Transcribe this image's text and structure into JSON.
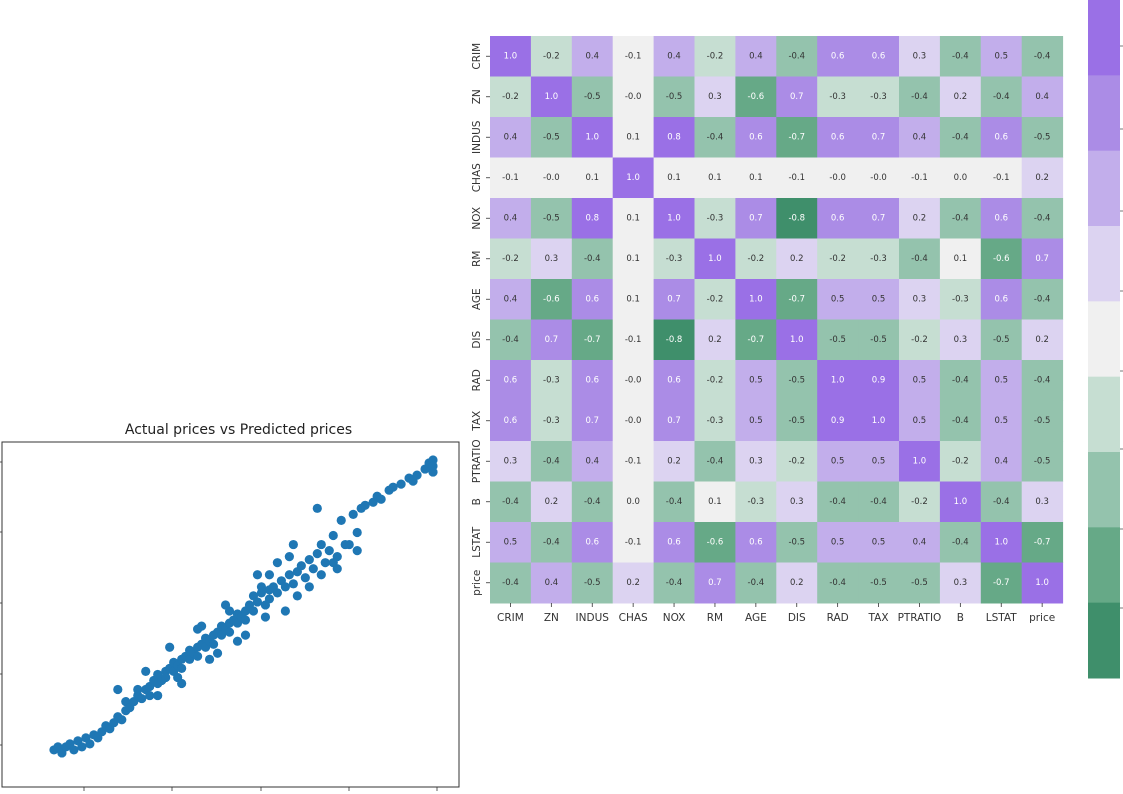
{
  "chart_data": [
    {
      "type": "heatmap",
      "title": "",
      "labels": [
        "CRIM",
        "ZN",
        "INDUS",
        "CHAS",
        "NOX",
        "RM",
        "AGE",
        "DIS",
        "RAD",
        "TAX",
        "PTRATIO",
        "B",
        "LSTAT",
        "price"
      ],
      "matrix": [
        [
          1.0,
          -0.2,
          0.4,
          -0.1,
          0.4,
          -0.2,
          0.4,
          -0.4,
          0.6,
          0.6,
          0.3,
          -0.4,
          0.5,
          -0.4
        ],
        [
          -0.2,
          1.0,
          -0.5,
          -0.0,
          -0.5,
          0.3,
          -0.6,
          0.7,
          -0.3,
          -0.3,
          -0.4,
          0.2,
          -0.4,
          0.4
        ],
        [
          0.4,
          -0.5,
          1.0,
          0.1,
          0.8,
          -0.4,
          0.6,
          -0.7,
          0.6,
          0.7,
          0.4,
          -0.4,
          0.6,
          -0.5
        ],
        [
          -0.1,
          -0.0,
          0.1,
          1.0,
          0.1,
          0.1,
          0.1,
          -0.1,
          -0.0,
          -0.0,
          -0.1,
          0.0,
          -0.1,
          0.2
        ],
        [
          0.4,
          -0.5,
          0.8,
          0.1,
          1.0,
          -0.3,
          0.7,
          -0.8,
          0.6,
          0.7,
          0.2,
          -0.4,
          0.6,
          -0.4
        ],
        [
          -0.2,
          0.3,
          -0.4,
          0.1,
          -0.3,
          1.0,
          -0.2,
          0.2,
          -0.2,
          -0.3,
          -0.4,
          0.1,
          -0.6,
          0.7
        ],
        [
          0.4,
          -0.6,
          0.6,
          0.1,
          0.7,
          -0.2,
          1.0,
          -0.7,
          0.5,
          0.5,
          0.3,
          -0.3,
          0.6,
          -0.4
        ],
        [
          -0.4,
          0.7,
          -0.7,
          -0.1,
          -0.8,
          0.2,
          -0.7,
          1.0,
          -0.5,
          -0.5,
          -0.2,
          0.3,
          -0.5,
          0.2
        ],
        [
          0.6,
          -0.3,
          0.6,
          -0.0,
          0.6,
          -0.2,
          0.5,
          -0.5,
          1.0,
          0.9,
          0.5,
          -0.4,
          0.5,
          -0.4
        ],
        [
          0.6,
          -0.3,
          0.7,
          -0.0,
          0.7,
          -0.3,
          0.5,
          -0.5,
          0.9,
          1.0,
          0.5,
          -0.4,
          0.5,
          -0.5
        ],
        [
          0.3,
          -0.4,
          0.4,
          -0.1,
          0.2,
          -0.4,
          0.3,
          -0.2,
          0.5,
          0.5,
          1.0,
          -0.2,
          0.4,
          -0.5
        ],
        [
          -0.4,
          0.2,
          -0.4,
          0.0,
          -0.4,
          0.1,
          -0.3,
          0.3,
          -0.4,
          -0.4,
          -0.2,
          1.0,
          -0.4,
          0.3
        ],
        [
          0.5,
          -0.4,
          0.6,
          -0.1,
          0.6,
          -0.6,
          0.6,
          -0.5,
          0.5,
          0.5,
          0.4,
          -0.4,
          1.0,
          -0.7
        ],
        [
          -0.4,
          0.4,
          -0.5,
          0.2,
          -0.4,
          0.7,
          -0.4,
          0.2,
          -0.4,
          -0.5,
          -0.5,
          0.3,
          -0.7,
          1.0
        ]
      ],
      "value_range": [
        -1.0,
        1.0
      ],
      "colorbar_colors_top_to_bottom": [
        "#9a70e6",
        "#ab8ce6",
        "#c2aeeb",
        "#dcd3f1",
        "#f0f0f0",
        "#c6ded2",
        "#94c3ad",
        "#66a987",
        "#3f8f6b"
      ]
    },
    {
      "type": "scatter",
      "title": "Actual prices vs Predicted prices",
      "color": "#1f77b4",
      "x_range": [
        0,
        1
      ],
      "y_range": [
        0,
        1
      ],
      "points": [
        [
          0.04,
          0.04
        ],
        [
          0.05,
          0.05
        ],
        [
          0.06,
          0.03
        ],
        [
          0.07,
          0.05
        ],
        [
          0.08,
          0.06
        ],
        [
          0.09,
          0.04
        ],
        [
          0.1,
          0.07
        ],
        [
          0.11,
          0.05
        ],
        [
          0.12,
          0.08
        ],
        [
          0.13,
          0.06
        ],
        [
          0.14,
          0.09
        ],
        [
          0.15,
          0.08
        ],
        [
          0.16,
          0.1
        ],
        [
          0.17,
          0.12
        ],
        [
          0.18,
          0.11
        ],
        [
          0.19,
          0.13
        ],
        [
          0.2,
          0.15
        ],
        [
          0.21,
          0.14
        ],
        [
          0.22,
          0.17
        ],
        [
          0.22,
          0.2
        ],
        [
          0.23,
          0.18
        ],
        [
          0.24,
          0.2
        ],
        [
          0.25,
          0.22
        ],
        [
          0.25,
          0.24
        ],
        [
          0.26,
          0.21
        ],
        [
          0.27,
          0.24
        ],
        [
          0.28,
          0.25
        ],
        [
          0.28,
          0.22
        ],
        [
          0.29,
          0.27
        ],
        [
          0.3,
          0.26
        ],
        [
          0.3,
          0.29
        ],
        [
          0.31,
          0.27
        ],
        [
          0.32,
          0.3
        ],
        [
          0.32,
          0.28
        ],
        [
          0.33,
          0.31
        ],
        [
          0.34,
          0.3
        ],
        [
          0.34,
          0.33
        ],
        [
          0.35,
          0.32
        ],
        [
          0.36,
          0.34
        ],
        [
          0.36,
          0.31
        ],
        [
          0.37,
          0.35
        ],
        [
          0.38,
          0.34
        ],
        [
          0.38,
          0.37
        ],
        [
          0.39,
          0.36
        ],
        [
          0.4,
          0.38
        ],
        [
          0.4,
          0.35
        ],
        [
          0.41,
          0.39
        ],
        [
          0.42,
          0.38
        ],
        [
          0.42,
          0.41
        ],
        [
          0.43,
          0.4
        ],
        [
          0.44,
          0.42
        ],
        [
          0.44,
          0.39
        ],
        [
          0.45,
          0.43
        ],
        [
          0.46,
          0.42
        ],
        [
          0.46,
          0.45
        ],
        [
          0.47,
          0.44
        ],
        [
          0.48,
          0.46
        ],
        [
          0.48,
          0.43
        ],
        [
          0.49,
          0.47
        ],
        [
          0.5,
          0.46
        ],
        [
          0.5,
          0.49
        ],
        [
          0.51,
          0.48
        ],
        [
          0.52,
          0.5
        ],
        [
          0.52,
          0.47
        ],
        [
          0.53,
          0.52
        ],
        [
          0.54,
          0.5
        ],
        [
          0.54,
          0.55
        ],
        [
          0.55,
          0.53
        ],
        [
          0.56,
          0.56
        ],
        [
          0.57,
          0.52
        ],
        [
          0.58,
          0.57
        ],
        [
          0.58,
          0.54
        ],
        [
          0.59,
          0.58
        ],
        [
          0.6,
          0.56
        ],
        [
          0.61,
          0.6
        ],
        [
          0.62,
          0.58
        ],
        [
          0.63,
          0.62
        ],
        [
          0.64,
          0.59
        ],
        [
          0.65,
          0.63
        ],
        [
          0.66,
          0.65
        ],
        [
          0.67,
          0.61
        ],
        [
          0.68,
          0.67
        ],
        [
          0.69,
          0.64
        ],
        [
          0.7,
          0.69
        ],
        [
          0.71,
          0.72
        ],
        [
          0.72,
          0.66
        ],
        [
          0.73,
          0.7
        ],
        [
          0.74,
          0.75
        ],
        [
          0.75,
          0.68
        ],
        [
          0.76,
          0.8
        ],
        [
          0.78,
          0.72
        ],
        [
          0.79,
          0.82
        ],
        [
          0.8,
          0.76
        ],
        [
          0.81,
          0.84
        ],
        [
          0.82,
          0.85
        ],
        [
          0.84,
          0.86
        ],
        [
          0.85,
          0.88
        ],
        [
          0.86,
          0.87
        ],
        [
          0.88,
          0.9
        ],
        [
          0.89,
          0.91
        ],
        [
          0.91,
          0.92
        ],
        [
          0.93,
          0.94
        ],
        [
          0.94,
          0.93
        ],
        [
          0.95,
          0.95
        ],
        [
          0.97,
          0.97
        ],
        [
          0.98,
          0.98
        ],
        [
          0.98,
          0.99
        ],
        [
          0.99,
          1.0
        ],
        [
          0.99,
          0.96
        ],
        [
          0.99,
          0.98
        ],
        [
          0.3,
          0.22
        ],
        [
          0.35,
          0.28
        ],
        [
          0.45,
          0.36
        ],
        [
          0.52,
          0.42
        ],
        [
          0.62,
          0.5
        ],
        [
          0.75,
          0.64
        ],
        [
          0.77,
          0.72
        ],
        [
          0.7,
          0.84
        ],
        [
          0.6,
          0.66
        ],
        [
          0.55,
          0.62
        ],
        [
          0.48,
          0.5
        ],
        [
          0.4,
          0.44
        ],
        [
          0.33,
          0.38
        ],
        [
          0.27,
          0.3
        ],
        [
          0.2,
          0.24
        ],
        [
          0.65,
          0.55
        ],
        [
          0.68,
          0.58
        ],
        [
          0.57,
          0.48
        ],
        [
          0.5,
          0.4
        ],
        [
          0.43,
          0.34
        ],
        [
          0.36,
          0.26
        ],
        [
          0.58,
          0.62
        ],
        [
          0.63,
          0.68
        ],
        [
          0.71,
          0.62
        ],
        [
          0.74,
          0.66
        ],
        [
          0.8,
          0.7
        ],
        [
          0.64,
          0.72
        ],
        [
          0.56,
          0.58
        ],
        [
          0.47,
          0.52
        ],
        [
          0.41,
          0.45
        ]
      ]
    }
  ]
}
